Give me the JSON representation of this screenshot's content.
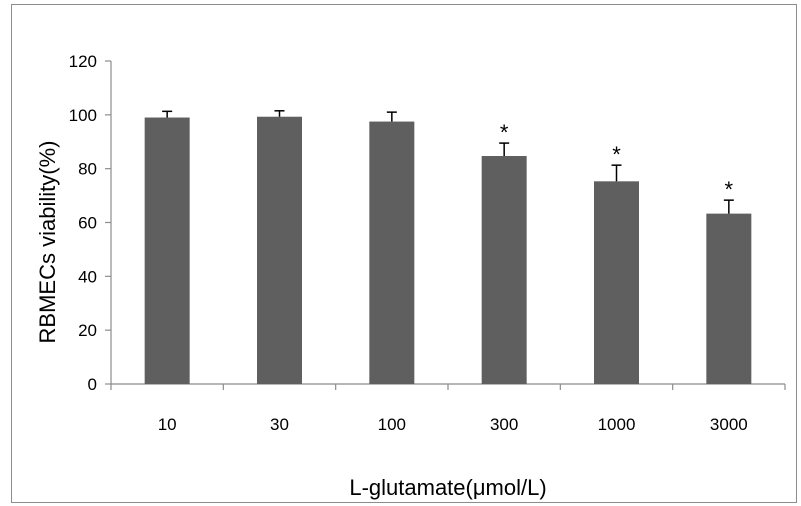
{
  "chart_data": {
    "type": "bar",
    "categories": [
      "10",
      "30",
      "100",
      "300",
      "1000",
      "3000"
    ],
    "values": [
      99,
      99.3,
      97.5,
      84.7,
      75.3,
      63.3
    ],
    "errors": [
      2.3,
      2.2,
      3.5,
      4.8,
      6.0,
      5.0
    ],
    "significance": [
      "",
      "",
      "",
      "*",
      "*",
      "*"
    ],
    "xlabel": "L-glutamate(μmol/L)",
    "ylabel": "RBMECs viability(%)",
    "ylim": [
      0,
      120
    ],
    "yticks": [
      0,
      20,
      40,
      60,
      80,
      100,
      120
    ],
    "grid": false,
    "legend": "none",
    "bar_color": "#5f5f5f",
    "axis_color": "#8c8c8c"
  }
}
